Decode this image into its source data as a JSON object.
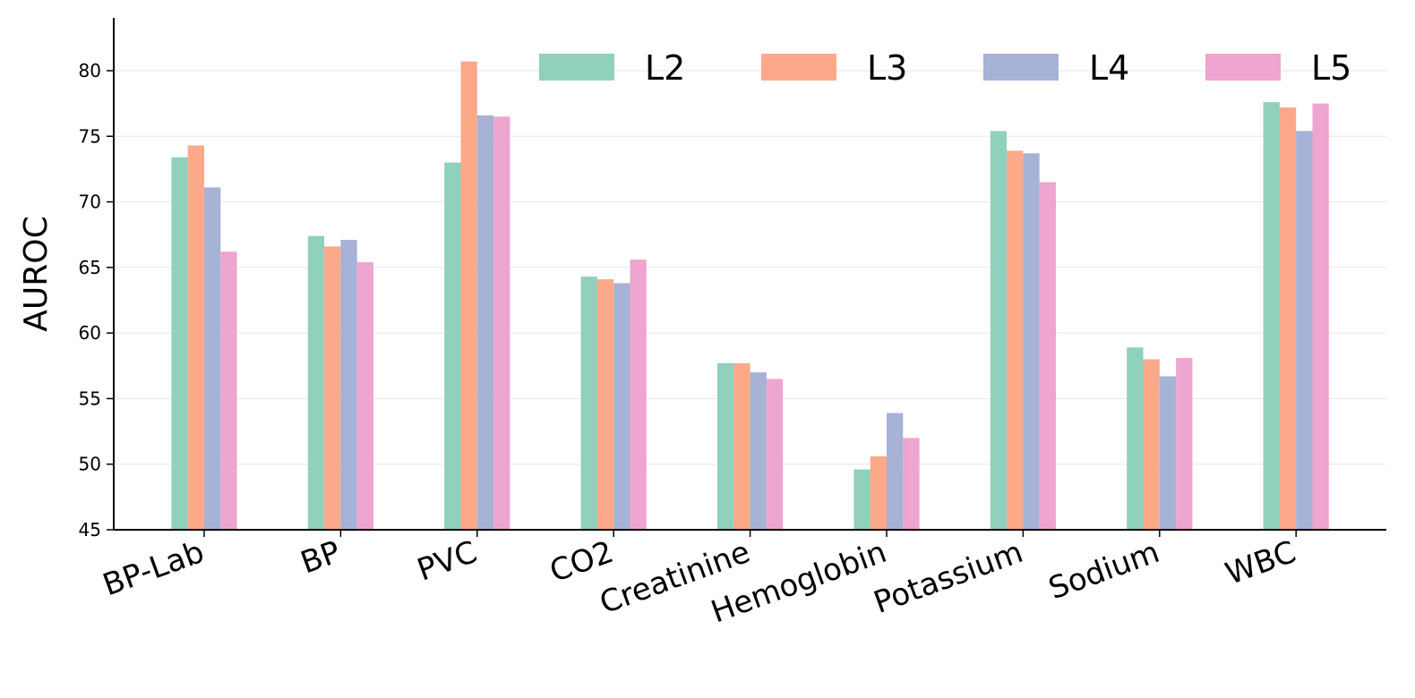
{
  "chart_data": {
    "type": "bar",
    "title": "",
    "xlabel": "",
    "ylabel": "AUROC",
    "ylim": [
      45,
      84
    ],
    "yticks": [
      45,
      50,
      55,
      60,
      65,
      70,
      75,
      80
    ],
    "grid": "horizontal",
    "legend_position": "top-right",
    "categories": [
      "BP-Lab",
      "BP",
      "PVC",
      "CO2",
      "Creatinine",
      "Hemoglobin",
      "Potassium",
      "Sodium",
      "WBC"
    ],
    "series": [
      {
        "name": "L2",
        "color": "#8fd1bb",
        "values": [
          73.4,
          67.4,
          73.0,
          64.3,
          57.7,
          49.6,
          75.4,
          58.9,
          77.6
        ]
      },
      {
        "name": "L3",
        "color": "#fba989",
        "values": [
          74.3,
          66.6,
          80.7,
          64.1,
          57.7,
          50.6,
          73.9,
          58.0,
          77.2
        ]
      },
      {
        "name": "L4",
        "color": "#a6b2d6",
        "values": [
          71.1,
          67.1,
          76.6,
          63.8,
          57.0,
          53.9,
          73.7,
          56.7,
          75.4
        ]
      },
      {
        "name": "L5",
        "color": "#eea5d0",
        "values": [
          66.2,
          65.4,
          76.5,
          65.6,
          56.5,
          52.0,
          71.5,
          58.1,
          77.5
        ]
      }
    ]
  }
}
